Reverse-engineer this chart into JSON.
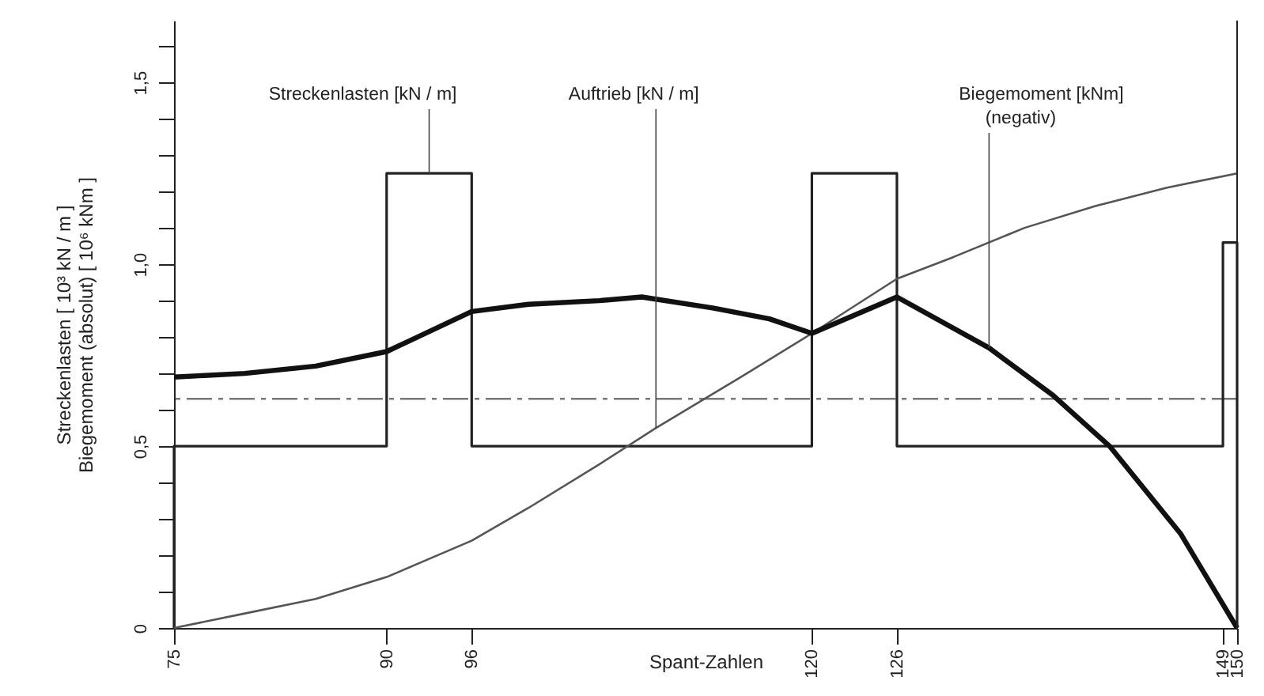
{
  "chart_data": {
    "type": "line",
    "xlabel": "Spant-Zahlen",
    "ylabel": "Streckenlasten [ 10³ kN / m ]\nBiegemoment (absolut) [ 10⁶ kNm ]",
    "xlim": [
      75,
      150
    ],
    "xticks": [
      75,
      90,
      96,
      120,
      126,
      149,
      150
    ],
    "ylim": [
      0,
      1.67
    ],
    "yticks": [
      0,
      {
        "value": 0.1,
        "label": null
      },
      {
        "value": 0.2,
        "label": null
      },
      {
        "value": 0.3,
        "label": null
      },
      {
        "value": 0.4,
        "label": null
      },
      {
        "value": 0.5,
        "label": "0,5"
      },
      {
        "value": 0.6,
        "label": null
      },
      {
        "value": 0.7,
        "label": null
      },
      {
        "value": 0.8,
        "label": null
      },
      {
        "value": 0.9,
        "label": null
      },
      {
        "value": 1.0,
        "label": "1,0"
      },
      {
        "value": 1.1,
        "label": null
      },
      {
        "value": 1.2,
        "label": null
      },
      {
        "value": 1.3,
        "label": null
      },
      {
        "value": 1.4,
        "label": null
      },
      {
        "value": 1.5,
        "label": "1,5"
      },
      {
        "value": 1.6,
        "label": null
      }
    ],
    "series": [
      {
        "type": "step",
        "color": "#222222",
        "x": [
          75,
          75,
          90,
          96,
          120,
          126,
          149,
          150,
          150
        ],
        "values": [
          0,
          0.5,
          1.25,
          0.5,
          1.25,
          0.5,
          1.06,
          1.06,
          0
        ]
      },
      {
        "type": "line",
        "color": "#555555",
        "x": [
          75,
          80,
          85,
          90,
          96,
          100,
          105,
          109,
          115,
          120,
          126,
          130,
          135,
          140,
          145,
          150
        ],
        "values": [
          0,
          0.04,
          0.08,
          0.14,
          0.24,
          0.33,
          0.45,
          0.55,
          0.69,
          0.81,
          0.96,
          1.02,
          1.1,
          1.16,
          1.21,
          1.25
        ]
      },
      {
        "type": "line",
        "color": "#111111",
        "x": [
          75,
          80,
          85,
          90,
          96,
          100,
          105,
          108,
          113,
          117,
          120,
          126,
          132.5,
          137,
          141,
          146,
          150
        ],
        "values": [
          0.69,
          0.7,
          0.72,
          0.76,
          0.87,
          0.89,
          0.9,
          0.91,
          0.88,
          0.85,
          0.81,
          0.91,
          0.77,
          0.64,
          0.5,
          0.26,
          0
        ]
      }
    ],
    "annotations": [
      {
        "text": "Streckenlasten [kN / m]",
        "x": 93,
        "y": 1.25
      },
      {
        "text": "Auftrieb [kN / m]",
        "x": 109,
        "y": 0.55
      },
      "Biegemoment [kNm]",
      {
        "text": "(negativ)",
        "x": 132.5,
        "y": 0.77
      }
    ],
    "ref_lines": [
      {
        "axis": "y",
        "value": 0.63,
        "color": "#777777",
        "line_style": "dashed"
      }
    ],
    "grid": false,
    "marker": "none"
  }
}
